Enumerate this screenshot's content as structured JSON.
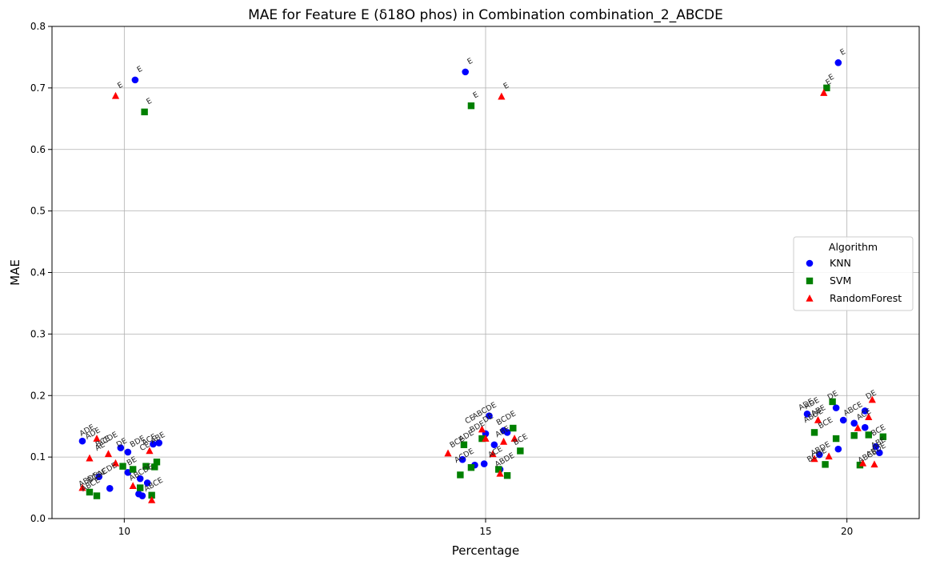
{
  "chart_data": {
    "type": "scatter",
    "title": "MAE for Feature E (δ18O phos) in Combination combination_2_ABCDE",
    "xlabel": "Percentage",
    "ylabel": "MAE",
    "xlim": [
      9.0,
      21.0
    ],
    "ylim": [
      0.0,
      0.8
    ],
    "xticks": [
      10,
      15,
      20
    ],
    "yticks": [
      0.0,
      0.1,
      0.2,
      0.3,
      0.4,
      0.5,
      0.6,
      0.7,
      0.8
    ],
    "grid": true,
    "legend": {
      "title": "Algorithm",
      "placement": "right"
    },
    "series": [
      {
        "name": "KNN",
        "color": "#0000ff",
        "marker": "circle",
        "points": [
          {
            "x": 10.15,
            "y": 0.713,
            "label": "E"
          },
          {
            "x": 9.42,
            "y": 0.126,
            "label": "ADE"
          },
          {
            "x": 9.95,
            "y": 0.115,
            "label": ""
          },
          {
            "x": 10.05,
            "y": 0.108,
            "label": ""
          },
          {
            "x": 10.4,
            "y": 0.121,
            "label": ""
          },
          {
            "x": 10.48,
            "y": 0.123,
            "label": ""
          },
          {
            "x": 9.65,
            "y": 0.068,
            "label": ""
          },
          {
            "x": 10.05,
            "y": 0.075,
            "label": ""
          },
          {
            "x": 10.22,
            "y": 0.065,
            "label": ""
          },
          {
            "x": 9.8,
            "y": 0.049,
            "label": ""
          },
          {
            "x": 10.2,
            "y": 0.04,
            "label": ""
          },
          {
            "x": 10.25,
            "y": 0.037,
            "label": ""
          },
          {
            "x": 10.32,
            "y": 0.058,
            "label": ""
          },
          {
            "x": 14.72,
            "y": 0.726,
            "label": "E"
          },
          {
            "x": 14.68,
            "y": 0.096,
            "label": ""
          },
          {
            "x": 14.85,
            "y": 0.087,
            "label": ""
          },
          {
            "x": 14.98,
            "y": 0.089,
            "label": ""
          },
          {
            "x": 15.0,
            "y": 0.138,
            "label": ""
          },
          {
            "x": 15.05,
            "y": 0.167,
            "label": ""
          },
          {
            "x": 15.12,
            "y": 0.12,
            "label": ""
          },
          {
            "x": 15.2,
            "y": 0.08,
            "label": ""
          },
          {
            "x": 15.25,
            "y": 0.143,
            "label": ""
          },
          {
            "x": 15.3,
            "y": 0.14,
            "label": ""
          },
          {
            "x": 19.88,
            "y": 0.741,
            "label": "E"
          },
          {
            "x": 19.45,
            "y": 0.17,
            "label": "ADE"
          },
          {
            "x": 19.62,
            "y": 0.104,
            "label": ""
          },
          {
            "x": 19.85,
            "y": 0.18,
            "label": ""
          },
          {
            "x": 19.88,
            "y": 0.113,
            "label": ""
          },
          {
            "x": 19.95,
            "y": 0.16,
            "label": ""
          },
          {
            "x": 20.1,
            "y": 0.155,
            "label": ""
          },
          {
            "x": 20.25,
            "y": 0.175,
            "label": ""
          },
          {
            "x": 20.25,
            "y": 0.148,
            "label": ""
          },
          {
            "x": 20.4,
            "y": 0.117,
            "label": ""
          },
          {
            "x": 20.45,
            "y": 0.107,
            "label": ""
          }
        ]
      },
      {
        "name": "SVM",
        "color": "#008000",
        "marker": "square",
        "points": [
          {
            "x": 10.28,
            "y": 0.661,
            "label": "E"
          },
          {
            "x": 9.52,
            "y": 0.043,
            "label": ""
          },
          {
            "x": 9.62,
            "y": 0.037,
            "label": ""
          },
          {
            "x": 9.98,
            "y": 0.085,
            "label": ""
          },
          {
            "x": 10.12,
            "y": 0.08,
            "label": ""
          },
          {
            "x": 10.22,
            "y": 0.05,
            "label": ""
          },
          {
            "x": 10.3,
            "y": 0.085,
            "label": ""
          },
          {
            "x": 10.38,
            "y": 0.038,
            "label": ""
          },
          {
            "x": 10.42,
            "y": 0.084,
            "label": ""
          },
          {
            "x": 10.45,
            "y": 0.092,
            "label": ""
          },
          {
            "x": 14.8,
            "y": 0.671,
            "label": "E"
          },
          {
            "x": 14.65,
            "y": 0.071,
            "label": ""
          },
          {
            "x": 14.7,
            "y": 0.12,
            "label": ""
          },
          {
            "x": 14.8,
            "y": 0.083,
            "label": ""
          },
          {
            "x": 14.95,
            "y": 0.13,
            "label": ""
          },
          {
            "x": 15.18,
            "y": 0.08,
            "label": ""
          },
          {
            "x": 15.3,
            "y": 0.07,
            "label": ""
          },
          {
            "x": 15.38,
            "y": 0.147,
            "label": ""
          },
          {
            "x": 15.48,
            "y": 0.11,
            "label": ""
          },
          {
            "x": 19.72,
            "y": 0.7,
            "label": "E"
          },
          {
            "x": 19.55,
            "y": 0.14,
            "label": ""
          },
          {
            "x": 19.7,
            "y": 0.088,
            "label": ""
          },
          {
            "x": 19.8,
            "y": 0.19,
            "label": ""
          },
          {
            "x": 19.85,
            "y": 0.13,
            "label": ""
          },
          {
            "x": 20.1,
            "y": 0.135,
            "label": ""
          },
          {
            "x": 20.18,
            "y": 0.087,
            "label": ""
          },
          {
            "x": 20.3,
            "y": 0.136,
            "label": ""
          },
          {
            "x": 20.5,
            "y": 0.133,
            "label": ""
          }
        ]
      },
      {
        "name": "RandomForest",
        "color": "#ff0000",
        "marker": "triangle",
        "points": [
          {
            "x": 9.88,
            "y": 0.687,
            "label": "E"
          },
          {
            "x": 9.52,
            "y": 0.098,
            "label": ""
          },
          {
            "x": 9.62,
            "y": 0.13,
            "label": ""
          },
          {
            "x": 9.78,
            "y": 0.105,
            "label": ""
          },
          {
            "x": 9.88,
            "y": 0.09,
            "label": ""
          },
          {
            "x": 10.12,
            "y": 0.053,
            "label": ""
          },
          {
            "x": 10.35,
            "y": 0.11,
            "label": ""
          },
          {
            "x": 10.38,
            "y": 0.03,
            "label": ""
          },
          {
            "x": 9.42,
            "y": 0.05,
            "label": ""
          },
          {
            "x": 15.22,
            "y": 0.686,
            "label": "E"
          },
          {
            "x": 14.95,
            "y": 0.145,
            "label": ""
          },
          {
            "x": 15.0,
            "y": 0.13,
            "label": ""
          },
          {
            "x": 15.1,
            "y": 0.105,
            "label": ""
          },
          {
            "x": 15.2,
            "y": 0.073,
            "label": ""
          },
          {
            "x": 15.25,
            "y": 0.125,
            "label": ""
          },
          {
            "x": 15.4,
            "y": 0.13,
            "label": ""
          },
          {
            "x": 14.48,
            "y": 0.106,
            "label": ""
          },
          {
            "x": 19.68,
            "y": 0.692,
            "label": "E"
          },
          {
            "x": 19.55,
            "y": 0.097,
            "label": ""
          },
          {
            "x": 19.6,
            "y": 0.16,
            "label": ""
          },
          {
            "x": 19.75,
            "y": 0.101,
            "label": ""
          },
          {
            "x": 20.22,
            "y": 0.09,
            "label": ""
          },
          {
            "x": 20.3,
            "y": 0.165,
            "label": ""
          },
          {
            "x": 20.35,
            "y": 0.193,
            "label": ""
          },
          {
            "x": 20.38,
            "y": 0.088,
            "label": ""
          },
          {
            "x": 20.15,
            "y": 0.147,
            "label": ""
          }
        ]
      }
    ],
    "cluster_labels": [
      {
        "x": 9.58,
        "y": 0.135,
        "label": "ADE"
      },
      {
        "x": 9.72,
        "y": 0.122,
        "label": "BCE"
      },
      {
        "x": 9.82,
        "y": 0.128,
        "label": "CDE"
      },
      {
        "x": 9.68,
        "y": 0.114,
        "label": "AE"
      },
      {
        "x": 9.98,
        "y": 0.12,
        "label": "DE"
      },
      {
        "x": 10.2,
        "y": 0.122,
        "label": "BDE"
      },
      {
        "x": 10.36,
        "y": 0.125,
        "label": "ACE"
      },
      {
        "x": 10.48,
        "y": 0.128,
        "label": "ABE"
      },
      {
        "x": 10.3,
        "y": 0.114,
        "label": "CE"
      },
      {
        "x": 9.52,
        "y": 0.06,
        "label": "ABDE"
      },
      {
        "x": 9.64,
        "y": 0.066,
        "label": "BCDE"
      },
      {
        "x": 9.78,
        "y": 0.076,
        "label": "ACDE"
      },
      {
        "x": 9.55,
        "y": 0.052,
        "label": "ABCE"
      },
      {
        "x": 10.12,
        "y": 0.09,
        "label": "BE"
      },
      {
        "x": 10.25,
        "y": 0.072,
        "label": "ABCDE"
      },
      {
        "x": 10.42,
        "y": 0.052,
        "label": "ABCE"
      },
      {
        "x": 15.0,
        "y": 0.172,
        "label": "ABCDE"
      },
      {
        "x": 15.3,
        "y": 0.16,
        "label": "BCDE"
      },
      {
        "x": 14.8,
        "y": 0.158,
        "label": "CE"
      },
      {
        "x": 15.05,
        "y": 0.16,
        "label": "DE"
      },
      {
        "x": 14.9,
        "y": 0.146,
        "label": "BDE"
      },
      {
        "x": 14.75,
        "y": 0.131,
        "label": "ADE"
      },
      {
        "x": 14.62,
        "y": 0.121,
        "label": "BCE"
      },
      {
        "x": 14.72,
        "y": 0.099,
        "label": "ACDE"
      },
      {
        "x": 15.25,
        "y": 0.138,
        "label": "ABE"
      },
      {
        "x": 15.5,
        "y": 0.125,
        "label": "BCE"
      },
      {
        "x": 15.28,
        "y": 0.092,
        "label": "ABDE"
      },
      {
        "x": 15.15,
        "y": 0.105,
        "label": "ACE"
      },
      {
        "x": 19.45,
        "y": 0.182,
        "label": "ADE"
      },
      {
        "x": 19.82,
        "y": 0.197,
        "label": "DE"
      },
      {
        "x": 19.62,
        "y": 0.172,
        "label": "ABE"
      },
      {
        "x": 19.55,
        "y": 0.164,
        "label": "ABDE"
      },
      {
        "x": 19.72,
        "y": 0.152,
        "label": "BCE"
      },
      {
        "x": 20.1,
        "y": 0.175,
        "label": "ABCE"
      },
      {
        "x": 20.35,
        "y": 0.198,
        "label": "DE"
      },
      {
        "x": 20.25,
        "y": 0.166,
        "label": "ACE"
      },
      {
        "x": 19.65,
        "y": 0.11,
        "label": "ABDE"
      },
      {
        "x": 19.6,
        "y": 0.1,
        "label": "BCDE"
      },
      {
        "x": 20.3,
        "y": 0.098,
        "label": "ABCE"
      },
      {
        "x": 20.45,
        "y": 0.14,
        "label": "BCE"
      },
      {
        "x": 20.45,
        "y": 0.12,
        "label": "ABE"
      },
      {
        "x": 20.42,
        "y": 0.108,
        "label": "ABDE"
      }
    ]
  }
}
